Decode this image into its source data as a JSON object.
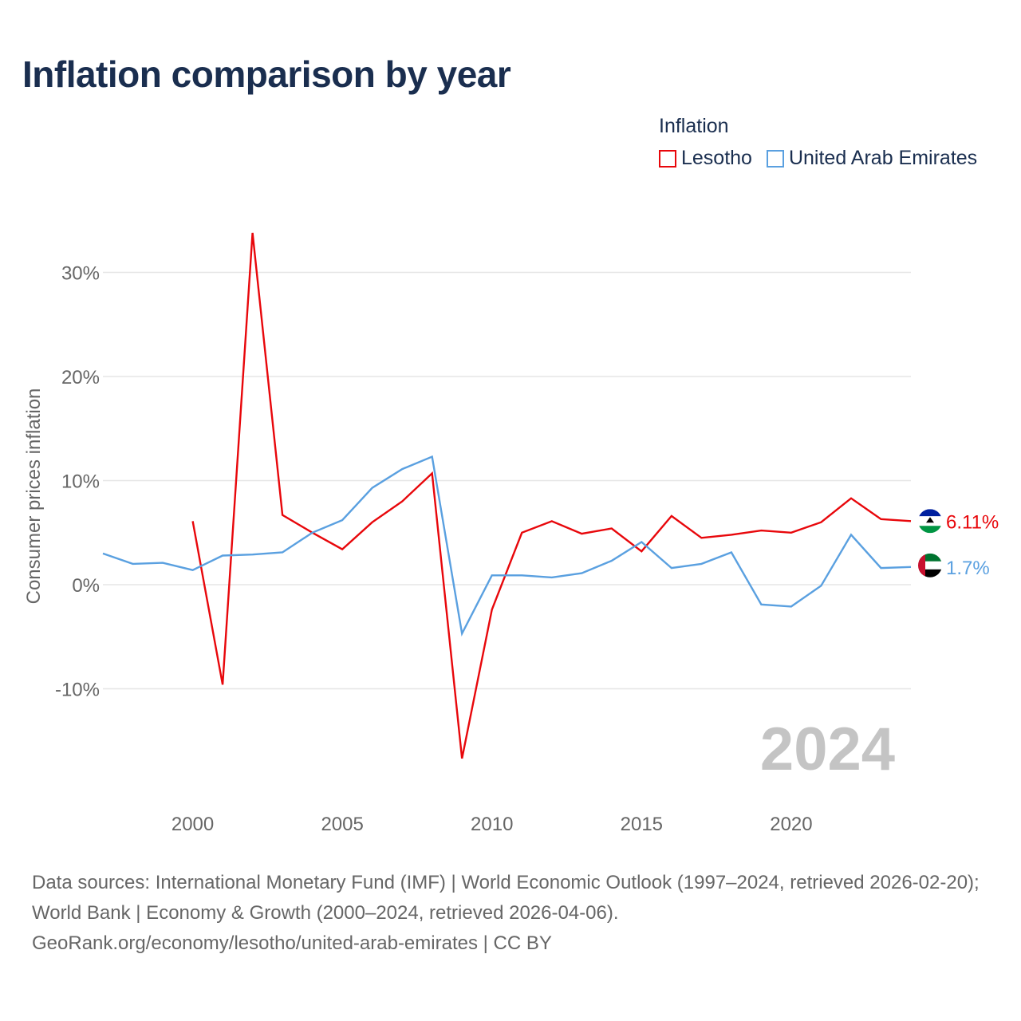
{
  "title": "Inflation comparison by year",
  "legend_title": "Inflation",
  "year_watermark": "2024",
  "colors": {
    "lesotho": "#e8070b",
    "uae": "#5aa0e0",
    "grid": "#e6e6e6",
    "axis_text": "#666666",
    "watermark": "#c4c4c4"
  },
  "chart_data": {
    "type": "line",
    "title": "Inflation comparison by year",
    "xlabel": "",
    "ylabel": "Consumer prices inflation",
    "xlim": [
      1997,
      2024
    ],
    "ylim": [
      -20,
      34
    ],
    "x_ticks": [
      2000,
      2005,
      2010,
      2015,
      2020
    ],
    "x_tick_labels": [
      "2000",
      "2005",
      "2010",
      "2015",
      "2020"
    ],
    "y_ticks": [
      -10,
      0,
      10,
      20,
      30
    ],
    "y_tick_labels": [
      "-10%",
      "0%",
      "10%",
      "20%",
      "30%"
    ],
    "grid": true,
    "legend_position": "top-right",
    "series": [
      {
        "name": "Lesotho",
        "color": "#e8070b",
        "end_label": "6.11%",
        "points": [
          [
            2000,
            6.1
          ],
          [
            2001,
            -9.6
          ],
          [
            2002,
            33.8
          ],
          [
            2003,
            6.7
          ],
          [
            2004,
            5.0
          ],
          [
            2005,
            3.4
          ],
          [
            2006,
            6.0
          ],
          [
            2007,
            8.0
          ],
          [
            2008,
            10.7
          ],
          [
            2009,
            -16.7
          ],
          [
            2010,
            -2.4
          ],
          [
            2011,
            5.0
          ],
          [
            2012,
            6.1
          ],
          [
            2013,
            4.9
          ],
          [
            2014,
            5.4
          ],
          [
            2015,
            3.2
          ],
          [
            2016,
            6.6
          ],
          [
            2017,
            4.5
          ],
          [
            2018,
            4.8
          ],
          [
            2019,
            5.2
          ],
          [
            2020,
            5.0
          ],
          [
            2021,
            6.0
          ],
          [
            2022,
            8.3
          ],
          [
            2023,
            6.3
          ],
          [
            2024,
            6.11
          ]
        ]
      },
      {
        "name": "United Arab Emirates",
        "color": "#5aa0e0",
        "end_label": "1.7%",
        "points": [
          [
            1997,
            3.0
          ],
          [
            1998,
            2.0
          ],
          [
            1999,
            2.1
          ],
          [
            2000,
            1.4
          ],
          [
            2001,
            2.8
          ],
          [
            2002,
            2.9
          ],
          [
            2003,
            3.1
          ],
          [
            2004,
            5.0
          ],
          [
            2005,
            6.2
          ],
          [
            2006,
            9.3
          ],
          [
            2007,
            11.1
          ],
          [
            2008,
            12.3
          ],
          [
            2009,
            -4.7
          ],
          [
            2010,
            0.9
          ],
          [
            2011,
            0.9
          ],
          [
            2012,
            0.7
          ],
          [
            2013,
            1.1
          ],
          [
            2014,
            2.3
          ],
          [
            2015,
            4.1
          ],
          [
            2016,
            1.6
          ],
          [
            2017,
            2.0
          ],
          [
            2018,
            3.1
          ],
          [
            2019,
            -1.9
          ],
          [
            2020,
            -2.1
          ],
          [
            2021,
            -0.1
          ],
          [
            2022,
            4.8
          ],
          [
            2023,
            1.6
          ],
          [
            2024,
            1.7
          ]
        ]
      }
    ]
  },
  "footer": {
    "line1": "Data sources: International Monetary Fund (IMF) | World Economic Outlook (1997–2024, retrieved 2026-02-20); World Bank | Economy & Growth (2000–2024, retrieved 2026-04-06).",
    "line2": "GeoRank.org/economy/lesotho/united-arab-emirates | CC BY"
  }
}
